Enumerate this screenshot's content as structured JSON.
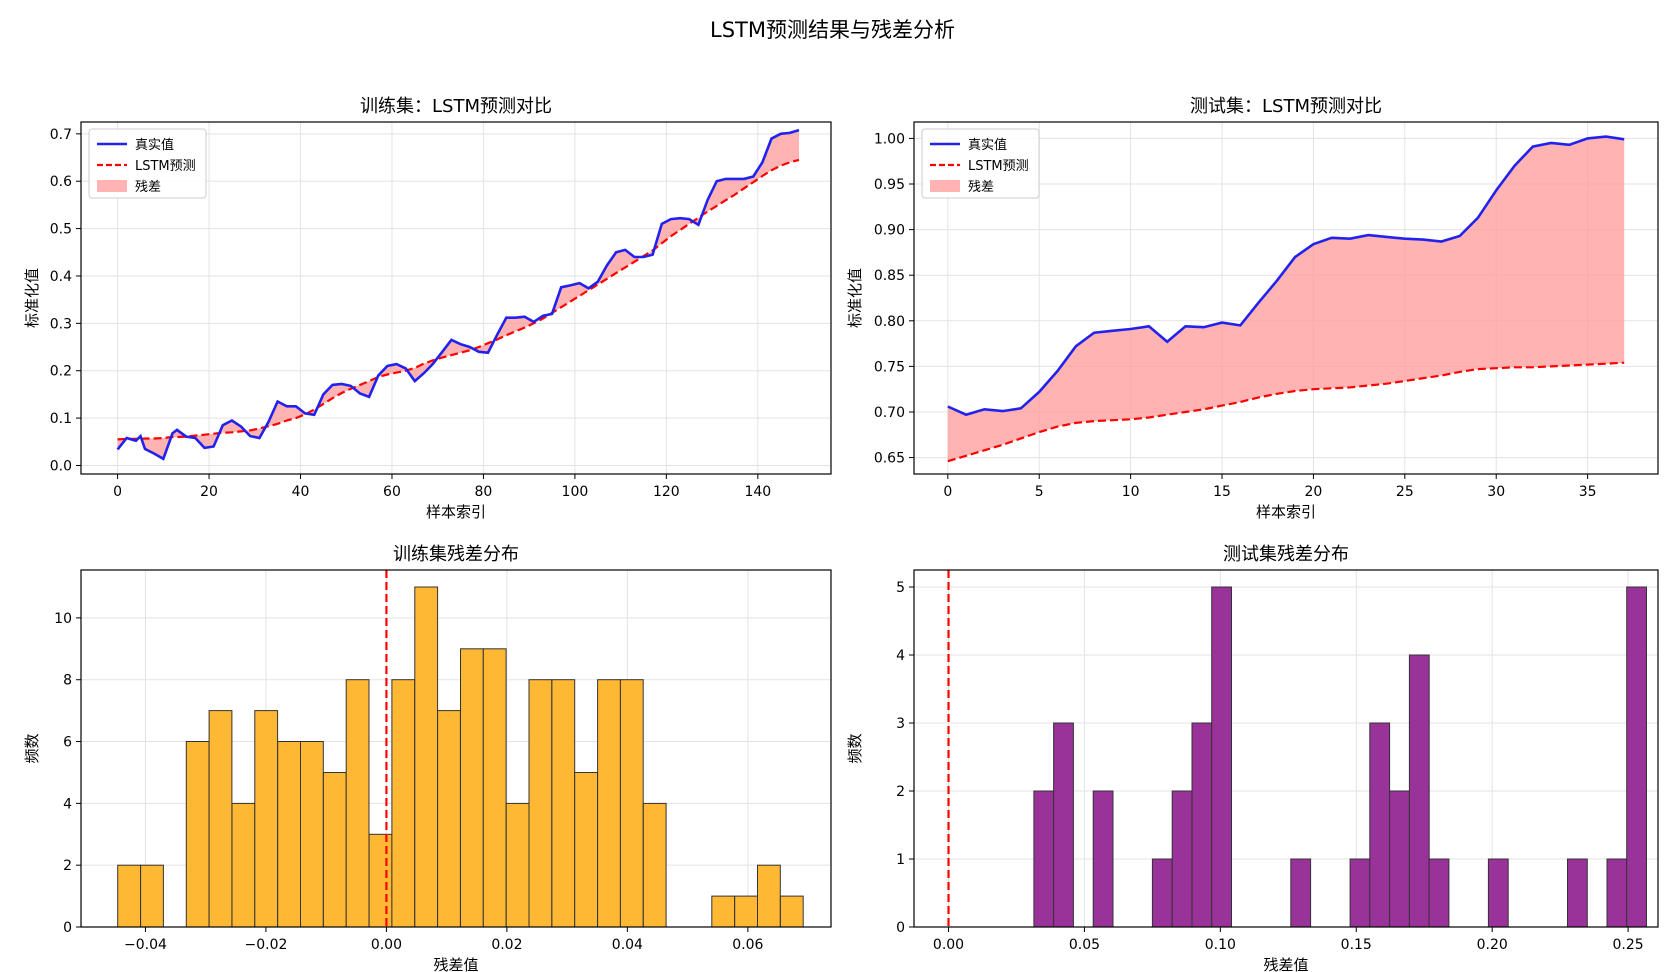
{
  "figure": {
    "title": "LSTM预测结果与残差分析"
  },
  "chart_data": [
    {
      "id": "train-line",
      "type": "line",
      "title": "训练集：LSTM预测对比",
      "xlabel": "样本索引",
      "ylabel": "标准化值",
      "xlim": [
        -8,
        156
      ],
      "ylim": [
        -0.018,
        0.725
      ],
      "xticks": [
        0,
        20,
        40,
        60,
        80,
        100,
        120,
        140
      ],
      "yticks": [
        0.0,
        0.1,
        0.2,
        0.3,
        0.4,
        0.5,
        0.6,
        0.7
      ],
      "ytick_labels": [
        "0.0",
        "0.1",
        "0.2",
        "0.3",
        "0.4",
        "0.5",
        "0.6",
        "0.7"
      ],
      "grid": true,
      "legend_position": "top-left",
      "legend": [
        {
          "label": "真实值",
          "kind": "line",
          "color": "#2222ee"
        },
        {
          "label": "LSTM预测",
          "kind": "dash",
          "color": "#ff0000"
        },
        {
          "label": "残差",
          "kind": "fill",
          "color": "#ff9999"
        }
      ],
      "x": [
        0,
        2,
        4,
        5,
        6,
        8,
        10,
        12,
        13,
        15,
        17,
        19,
        21,
        23,
        25,
        27,
        29,
        31,
        33,
        35,
        37,
        39,
        41,
        43,
        45,
        47,
        49,
        51,
        53,
        55,
        57,
        59,
        61,
        63,
        65,
        67,
        69,
        71,
        73,
        75,
        77,
        79,
        81,
        83,
        85,
        87,
        89,
        91,
        93,
        95,
        97,
        99,
        101,
        103,
        105,
        107,
        109,
        111,
        113,
        115,
        117,
        119,
        121,
        123,
        125,
        127,
        129,
        131,
        133,
        135,
        137,
        139,
        141,
        143,
        145,
        147,
        149
      ],
      "series": [
        {
          "name": "真实值",
          "values": [
            0.034,
            0.058,
            0.052,
            0.062,
            0.035,
            0.025,
            0.014,
            0.068,
            0.075,
            0.061,
            0.058,
            0.037,
            0.04,
            0.085,
            0.095,
            0.082,
            0.062,
            0.058,
            0.092,
            0.135,
            0.125,
            0.125,
            0.11,
            0.107,
            0.15,
            0.17,
            0.172,
            0.168,
            0.152,
            0.145,
            0.19,
            0.21,
            0.214,
            0.205,
            0.178,
            0.195,
            0.215,
            0.24,
            0.265,
            0.256,
            0.25,
            0.24,
            0.238,
            0.276,
            0.312,
            0.312,
            0.314,
            0.303,
            0.316,
            0.32,
            0.376,
            0.38,
            0.385,
            0.374,
            0.388,
            0.422,
            0.45,
            0.455,
            0.44,
            0.44,
            0.445,
            0.51,
            0.52,
            0.522,
            0.52,
            0.508,
            0.56,
            0.6,
            0.605,
            0.605,
            0.605,
            0.61,
            0.64,
            0.69,
            0.7,
            0.702,
            0.708
          ]
        },
        {
          "name": "LSTM预测",
          "values": [
            0.055,
            0.056,
            0.056,
            0.056,
            0.057,
            0.057,
            0.058,
            0.06,
            0.06,
            0.061,
            0.063,
            0.065,
            0.067,
            0.069,
            0.07,
            0.072,
            0.074,
            0.078,
            0.083,
            0.088,
            0.095,
            0.1,
            0.108,
            0.118,
            0.13,
            0.142,
            0.153,
            0.162,
            0.17,
            0.178,
            0.187,
            0.192,
            0.196,
            0.2,
            0.206,
            0.215,
            0.222,
            0.228,
            0.233,
            0.238,
            0.243,
            0.25,
            0.258,
            0.266,
            0.275,
            0.283,
            0.291,
            0.3,
            0.31,
            0.322,
            0.334,
            0.346,
            0.358,
            0.37,
            0.382,
            0.394,
            0.406,
            0.418,
            0.43,
            0.442,
            0.454,
            0.469,
            0.484,
            0.497,
            0.51,
            0.523,
            0.536,
            0.548,
            0.56,
            0.572,
            0.585,
            0.598,
            0.611,
            0.623,
            0.633,
            0.64,
            0.645
          ]
        }
      ]
    },
    {
      "id": "test-line",
      "type": "line",
      "title": "测试集：LSTM预测对比",
      "xlabel": "样本索引",
      "ylabel": "标准化值",
      "xlim": [
        -1.85,
        38.85
      ],
      "ylim": [
        0.632,
        1.018
      ],
      "xticks": [
        0,
        5,
        10,
        15,
        20,
        25,
        30,
        35
      ],
      "yticks": [
        0.65,
        0.7,
        0.75,
        0.8,
        0.85,
        0.9,
        0.95,
        1.0
      ],
      "ytick_labels": [
        "0.65",
        "0.70",
        "0.75",
        "0.80",
        "0.85",
        "0.90",
        "0.95",
        "1.00"
      ],
      "grid": true,
      "legend_position": "top-left",
      "legend": [
        {
          "label": "真实值",
          "kind": "line",
          "color": "#2222ee"
        },
        {
          "label": "LSTM预测",
          "kind": "dash",
          "color": "#ff0000"
        },
        {
          "label": "残差",
          "kind": "fill",
          "color": "#ff9999"
        }
      ],
      "x": [
        0,
        1,
        2,
        3,
        4,
        5,
        6,
        7,
        8,
        9,
        10,
        11,
        12,
        13,
        14,
        15,
        16,
        17,
        18,
        19,
        20,
        21,
        22,
        23,
        24,
        25,
        26,
        27,
        28,
        29,
        30,
        31,
        32,
        33,
        34,
        35,
        36,
        37
      ],
      "series": [
        {
          "name": "真实值",
          "values": [
            0.706,
            0.697,
            0.703,
            0.701,
            0.704,
            0.722,
            0.745,
            0.772,
            0.787,
            0.789,
            0.791,
            0.794,
            0.777,
            0.794,
            0.793,
            0.798,
            0.795,
            0.82,
            0.844,
            0.87,
            0.884,
            0.891,
            0.89,
            0.894,
            0.892,
            0.89,
            0.889,
            0.887,
            0.893,
            0.913,
            0.943,
            0.97,
            0.991,
            0.995,
            0.993,
            1.0,
            1.002,
            0.999
          ]
        },
        {
          "name": "LSTM预测",
          "values": [
            0.646,
            0.652,
            0.658,
            0.664,
            0.671,
            0.678,
            0.684,
            0.688,
            0.69,
            0.691,
            0.692,
            0.694,
            0.697,
            0.7,
            0.703,
            0.707,
            0.711,
            0.716,
            0.72,
            0.723,
            0.725,
            0.726,
            0.727,
            0.729,
            0.731,
            0.734,
            0.737,
            0.74,
            0.744,
            0.747,
            0.748,
            0.749,
            0.749,
            0.75,
            0.751,
            0.752,
            0.753,
            0.754
          ]
        }
      ]
    },
    {
      "id": "train-hist",
      "type": "histogram",
      "title": "训练集残差分布",
      "xlabel": "残差值",
      "ylabel": "频数",
      "color": "#ffb833",
      "bin_start": -0.0446,
      "bin_width": 0.003793,
      "counts": [
        2,
        2,
        0,
        6,
        7,
        4,
        7,
        6,
        6,
        5,
        8,
        3,
        8,
        11,
        7,
        9,
        9,
        4,
        8,
        8,
        5,
        8,
        8,
        4,
        0,
        0,
        1,
        1,
        2,
        1
      ],
      "xlim": [
        -0.0507,
        0.0738
      ],
      "ylim": [
        0,
        11.55
      ],
      "xticks": [
        -0.04,
        -0.02,
        0.0,
        0.02,
        0.04,
        0.06
      ],
      "xtick_labels": [
        "−0.04",
        "−0.02",
        "0.00",
        "0.02",
        "0.04",
        "0.06"
      ],
      "yticks": [
        0,
        2,
        4,
        6,
        8,
        10
      ],
      "ytick_labels": [
        "0",
        "2",
        "4",
        "6",
        "8",
        "10"
      ],
      "reference_line": 0,
      "grid": true
    },
    {
      "id": "test-hist",
      "type": "histogram",
      "title": "测试集残差分布",
      "xlabel": "残差值",
      "ylabel": "频数",
      "color": "#993399",
      "bin_start": 0.0314,
      "bin_width": 0.00727,
      "counts": [
        2,
        3,
        0,
        2,
        0,
        0,
        1,
        2,
        3,
        5,
        0,
        0,
        0,
        1,
        0,
        0,
        1,
        3,
        2,
        4,
        1,
        0,
        0,
        1,
        0,
        0,
        0,
        1,
        0,
        1,
        5
      ],
      "xlim": [
        -0.0127,
        0.261
      ],
      "ylim": [
        0,
        5.25
      ],
      "xticks": [
        0.0,
        0.05,
        0.1,
        0.15,
        0.2,
        0.25
      ],
      "xtick_labels": [
        "0.00",
        "0.05",
        "0.10",
        "0.15",
        "0.20",
        "0.25"
      ],
      "yticks": [
        0,
        1,
        2,
        3,
        4,
        5
      ],
      "ytick_labels": [
        "0",
        "1",
        "2",
        "3",
        "4",
        "5"
      ],
      "reference_line": 0,
      "grid": true
    }
  ]
}
